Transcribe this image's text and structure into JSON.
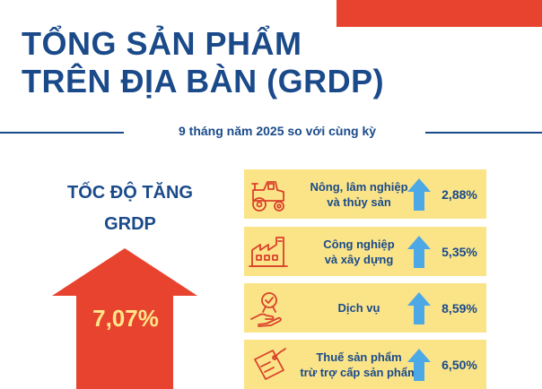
{
  "header": {
    "title_line1": "TỔNG SẢN PHẨM",
    "title_line2": "TRÊN ĐỊA BÀN (GRDP)",
    "subtitle": "9 tháng năm 2025 so với cùng kỳ"
  },
  "growth": {
    "label_line1": "TỐC ĐỘ TĂNG",
    "label_line2": "GRDP",
    "value": "7,07%"
  },
  "sectors": [
    {
      "name_line1": "Nông, lâm nghiệp",
      "name_line2": "và thủy sản",
      "value": "2,88%",
      "icon": "tractor-icon"
    },
    {
      "name_line1": "Công nghiệp",
      "name_line2": "và xây dựng",
      "value": "5,35%",
      "icon": "factory-icon"
    },
    {
      "name_line1": "Dịch vụ",
      "name_line2": "",
      "value": "8,59%",
      "icon": "service-hand-icon"
    },
    {
      "name_line1": "Thuế sản phẩm",
      "name_line2": "trừ trợ cấp sản phẩm",
      "value": "6,50%",
      "icon": "tax-tag-icon"
    }
  ],
  "colors": {
    "navy": "#1a4a8a",
    "accent_red": "#e8432e",
    "panel_yellow": "#fbe488",
    "arrow_blue": "#4da8e6",
    "value_yellow": "#ffe68a",
    "icon_red": "#d9412b"
  }
}
